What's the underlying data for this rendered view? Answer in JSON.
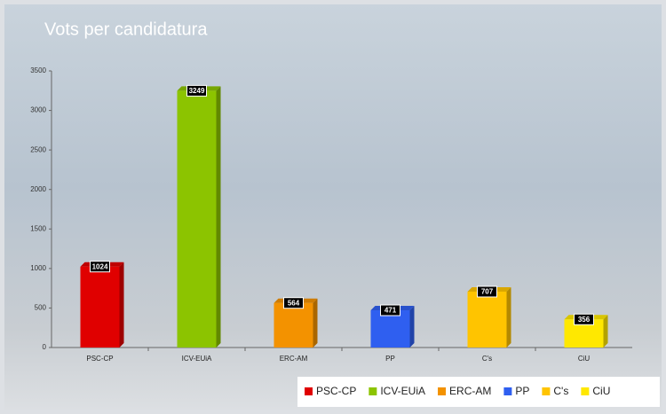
{
  "chart_data": {
    "type": "bar",
    "title": "Vots per candidatura",
    "categories": [
      "PSC-CP",
      "ICV-EUiA",
      "ERC-AM",
      "PP",
      "C's",
      "CiU"
    ],
    "values": [
      1024,
      3249,
      564,
      471,
      707,
      356
    ],
    "colors": [
      "#e00000",
      "#8cc400",
      "#f39200",
      "#2f5ff0",
      "#ffc400",
      "#ffe800"
    ],
    "ylim": [
      0,
      3500
    ],
    "yticks": [
      0,
      500,
      1000,
      1500,
      2000,
      2500,
      3000,
      3500
    ],
    "grid": false,
    "legend": "bottom-right"
  }
}
